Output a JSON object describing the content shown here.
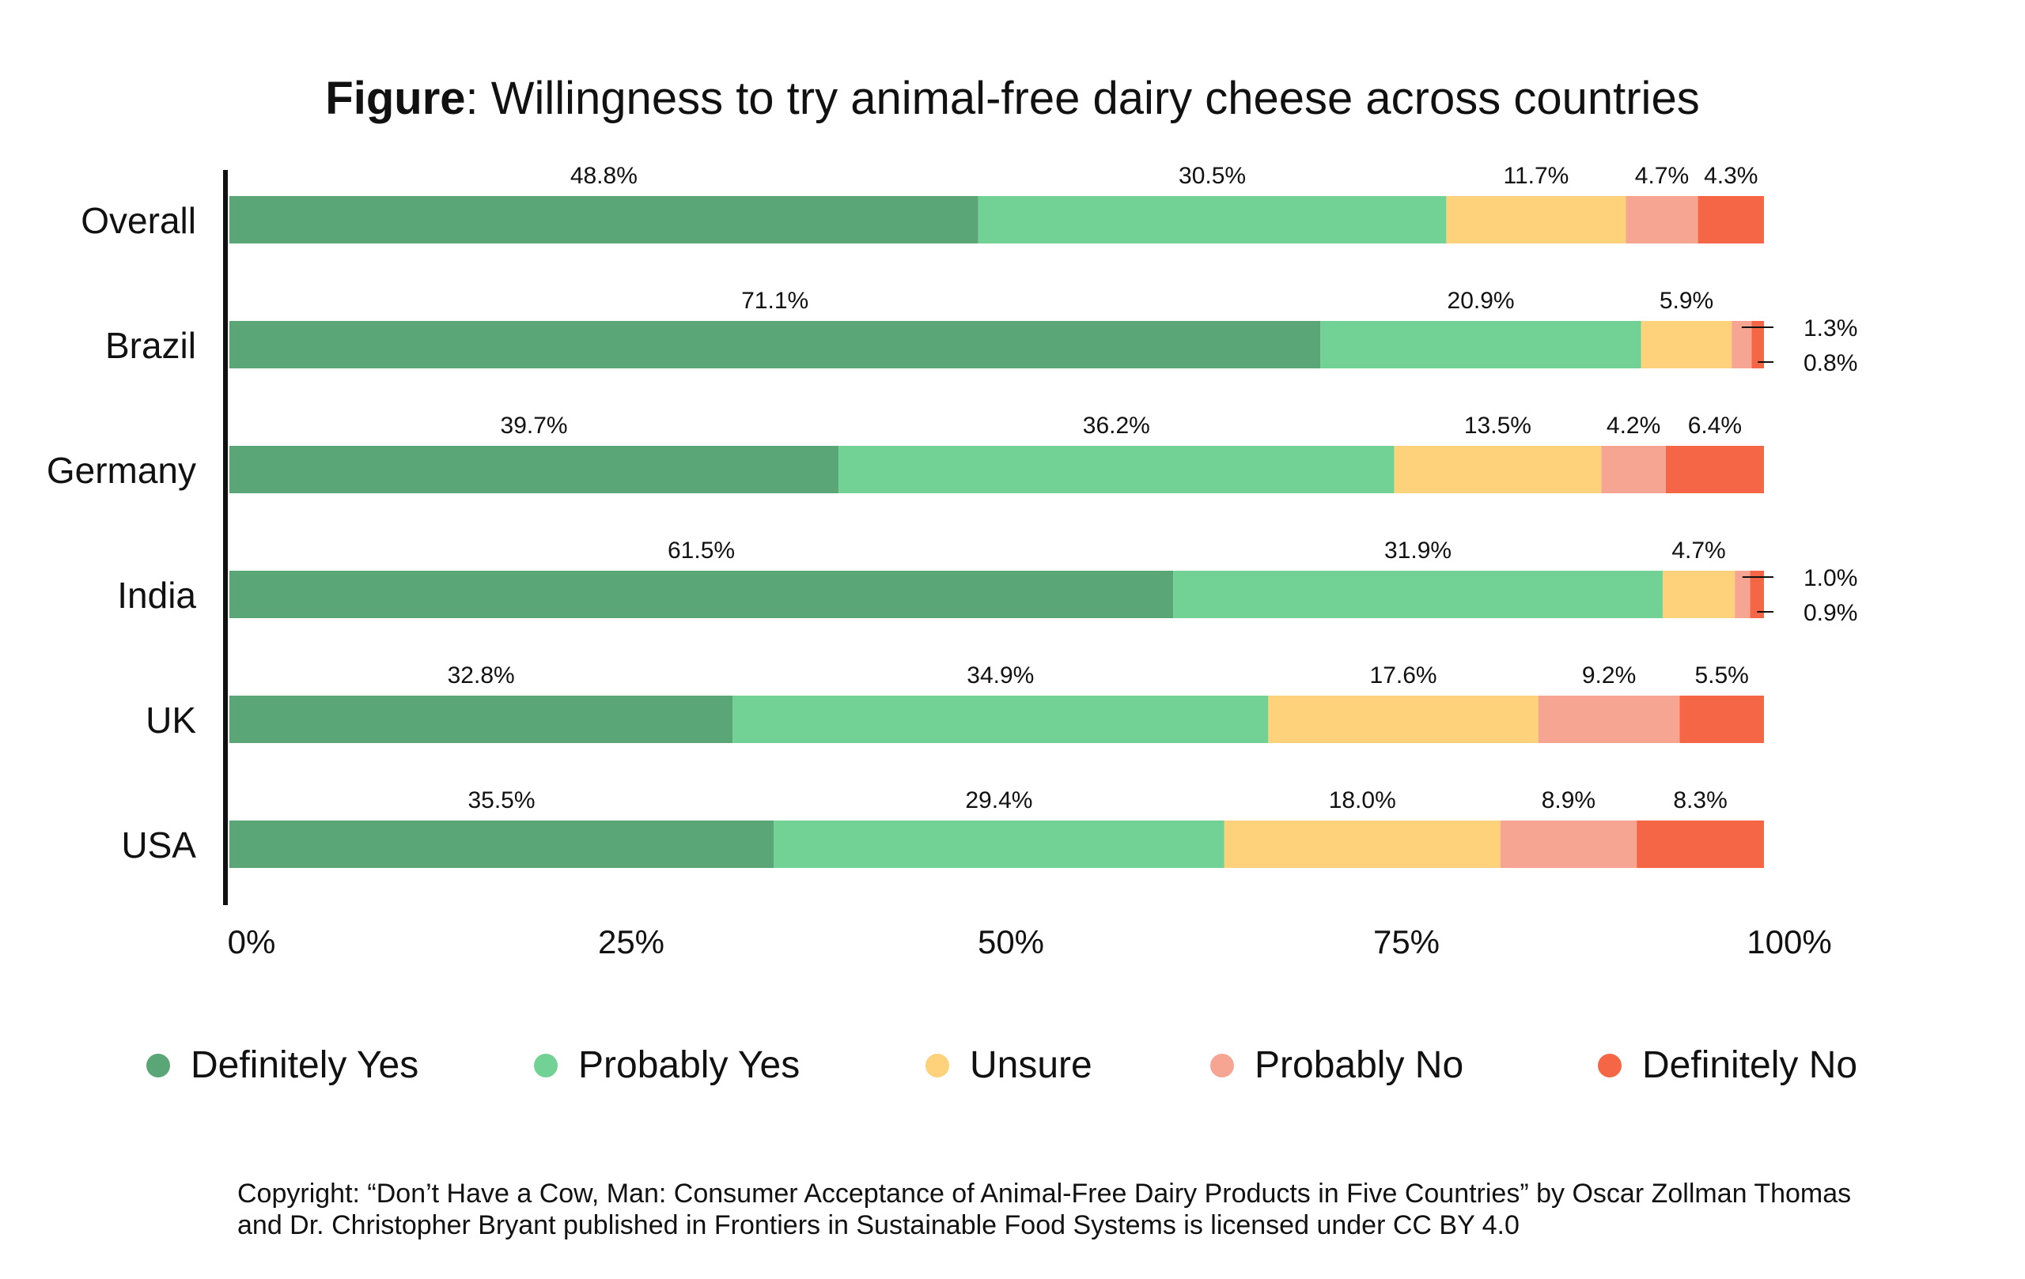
{
  "title": {
    "bold": "Figure",
    "rest": ": Willingness to try animal-free dairy cheese across countries"
  },
  "colors": {
    "Definitely Yes": "#5ba676",
    "Probably Yes": "#72d295",
    "Unsure": "#fdd27b",
    "Probably No": "#f6a593",
    "Definitely No": "#f56646"
  },
  "chart_data": {
    "type": "bar",
    "orientation": "horizontal",
    "stacked": true,
    "categories": [
      "Overall",
      "Brazil",
      "Germany",
      "India",
      "UK",
      "USA"
    ],
    "series": [
      {
        "name": "Definitely Yes",
        "values": [
          48.8,
          71.1,
          39.7,
          61.5,
          32.8,
          35.5
        ]
      },
      {
        "name": "Probably Yes",
        "values": [
          30.5,
          20.9,
          36.2,
          31.9,
          34.9,
          29.4
        ]
      },
      {
        "name": "Unsure",
        "values": [
          11.7,
          5.9,
          13.5,
          4.7,
          17.6,
          18.0
        ]
      },
      {
        "name": "Probably No",
        "values": [
          4.7,
          1.3,
          4.2,
          1.0,
          9.2,
          8.9
        ]
      },
      {
        "name": "Definitely No",
        "values": [
          4.3,
          0.8,
          6.4,
          0.9,
          5.5,
          8.3
        ]
      }
    ],
    "data_labels": [
      [
        "48.8%",
        "30.5%",
        "11.7%",
        "4.7%",
        "4.3%"
      ],
      [
        "71.1%",
        "20.9%",
        "5.9%",
        "1.3%",
        "0.8%"
      ],
      [
        "39.7%",
        "36.2%",
        "13.5%",
        "4.2%",
        "6.4%"
      ],
      [
        "61.5%",
        "31.9%",
        "4.7%",
        "1.0%",
        "0.9%"
      ],
      [
        "32.8%",
        "34.9%",
        "17.6%",
        "9.2%",
        "5.5%"
      ],
      [
        "35.5%",
        "29.4%",
        "18.0%",
        "8.9%",
        "8.3%"
      ]
    ],
    "xlim": [
      0,
      100
    ],
    "xticks": [
      "0%",
      "25%",
      "50%",
      "75%",
      "100%"
    ],
    "xlabel": "",
    "ylabel": "",
    "grid": false,
    "legend_position": "bottom"
  },
  "copyright": "Copyright: “Don’t Have a Cow, Man: Consumer Acceptance of Animal-Free Dairy Products in Five Countries” by Oscar Zollman Thomas and Dr. Christopher Bryant published in Frontiers in Sustainable Food Systems is licensed under CC BY 4.0"
}
